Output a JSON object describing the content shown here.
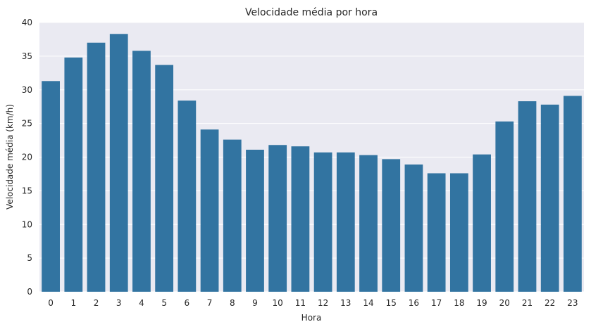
{
  "chart_data": {
    "type": "bar",
    "title": "Velocidade média por hora",
    "xlabel": "Hora",
    "ylabel": "Velocidade média (km/h)",
    "categories": [
      "0",
      "1",
      "2",
      "3",
      "4",
      "5",
      "6",
      "7",
      "8",
      "9",
      "10",
      "11",
      "12",
      "13",
      "14",
      "15",
      "16",
      "17",
      "18",
      "19",
      "20",
      "21",
      "22",
      "23"
    ],
    "values": [
      31.3,
      34.8,
      37.0,
      38.3,
      35.8,
      33.7,
      28.4,
      24.1,
      22.6,
      21.1,
      21.8,
      21.6,
      20.7,
      20.7,
      20.3,
      19.7,
      18.9,
      17.6,
      17.6,
      20.4,
      25.3,
      28.3,
      27.8,
      29.1
    ],
    "ylim": [
      0,
      40
    ],
    "yticks": [
      "0",
      "5",
      "10",
      "15",
      "20",
      "25",
      "30",
      "35",
      "40"
    ],
    "bar_color": "#3274a1",
    "background_color": "#eaeaf2",
    "grid": true
  }
}
